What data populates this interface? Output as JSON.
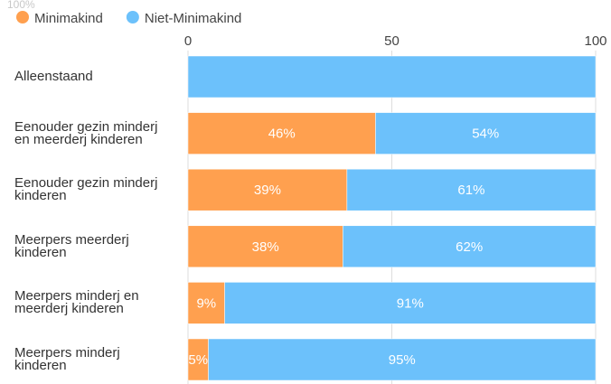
{
  "chart_data": {
    "type": "stacked-bar-horizontal",
    "corner_label": "100%",
    "categories": [
      "Alleenstaand",
      "Eenouder gezin minderj en meerderj kinderen",
      "Eenouder gezin minderj kinderen",
      "Meerpers meerderj kinderen",
      "Meerpers minderj en meerderj kinderen",
      "Meerpers minderj kinderen"
    ],
    "series": [
      {
        "name": "Minimakind",
        "color": "#ffa04f",
        "values": [
          0,
          46,
          39,
          38,
          9,
          5
        ],
        "value_labels": [
          null,
          "46%",
          "39%",
          "38%",
          "9%",
          "5%"
        ]
      },
      {
        "name": "Niet-Minimakind",
        "color": "#6cc1fb",
        "values": [
          100,
          54,
          61,
          62,
          91,
          95
        ],
        "value_labels": [
          null,
          "54%",
          "61%",
          "62%",
          "91%",
          "95%"
        ]
      }
    ],
    "xlim": [
      0,
      100
    ],
    "xticks": [
      0,
      50,
      100
    ],
    "grid": true,
    "legend": "top-left"
  }
}
